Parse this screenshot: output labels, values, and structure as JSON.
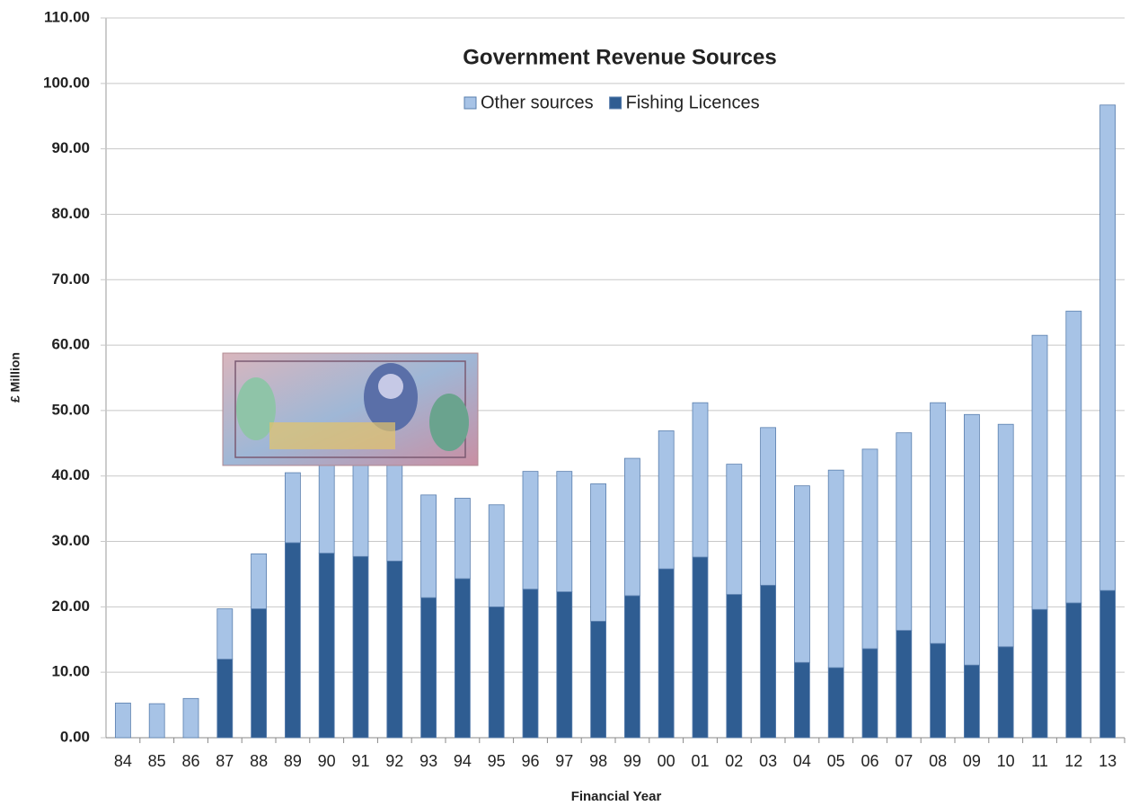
{
  "chart_data": {
    "type": "stacked_bar",
    "title": "Government Revenue Sources",
    "x_label": "Financial Year",
    "y_label": "£ Million",
    "categories": [
      "84",
      "85",
      "86",
      "87",
      "88",
      "89",
      "90",
      "91",
      "92",
      "93",
      "94",
      "95",
      "96",
      "97",
      "98",
      "99",
      "00",
      "01",
      "02",
      "03",
      "04",
      "05",
      "06",
      "07",
      "08",
      "09",
      "10",
      "11",
      "12",
      "13"
    ],
    "series": [
      {
        "name": "Other sources",
        "color": "#a7c3e6",
        "values": [
          5.3,
          5.2,
          6.0,
          7.7,
          8.4,
          10.7,
          15.8,
          16.3,
          17.0,
          15.7,
          12.3,
          15.6,
          18.0,
          18.4,
          21.0,
          21.0,
          21.1,
          23.6,
          19.9,
          24.1,
          27.0,
          30.2,
          30.5,
          30.2,
          36.8,
          38.3,
          34.0,
          41.9,
          44.6,
          74.2
        ]
      },
      {
        "name": "Fishing Licences",
        "color": "#2f5d92",
        "values": [
          0,
          0,
          0,
          12.0,
          19.7,
          29.8,
          28.2,
          27.7,
          27.0,
          21.4,
          24.3,
          20.0,
          22.7,
          22.3,
          17.8,
          21.7,
          25.8,
          27.6,
          21.9,
          23.3,
          11.5,
          10.7,
          13.6,
          16.4,
          14.4,
          11.1,
          13.9,
          19.6,
          20.6,
          22.5
        ]
      }
    ],
    "ylim": [
      0,
      110
    ],
    "yticks": [
      {
        "value": 0,
        "label": "0.00"
      },
      {
        "value": 10,
        "label": "10.00"
      },
      {
        "value": 20,
        "label": "20.00"
      },
      {
        "value": 30,
        "label": "30.00"
      },
      {
        "value": 40,
        "label": "40.00"
      },
      {
        "value": 50,
        "label": "50.00"
      },
      {
        "value": 60,
        "label": "60.00"
      },
      {
        "value": 70,
        "label": "70.00"
      },
      {
        "value": 80,
        "label": "80.00"
      },
      {
        "value": 90,
        "label": "90.00"
      },
      {
        "value": 100,
        "label": "100.00"
      },
      {
        "value": 110,
        "label": "110.00"
      }
    ],
    "grid": true
  }
}
